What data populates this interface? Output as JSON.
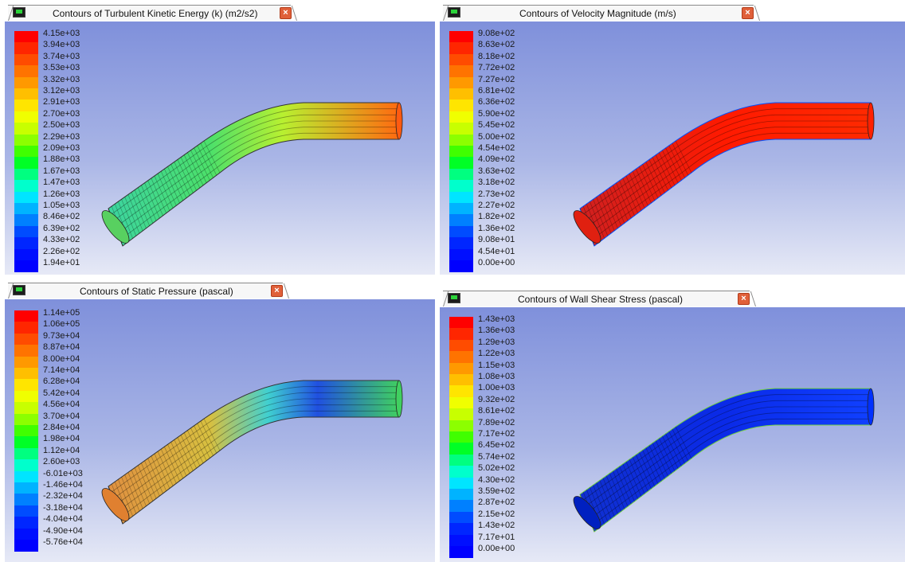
{
  "panels": [
    {
      "title": "Contours of Turbulent Kinetic Energy (k) (m2/s2)",
      "legend": [
        "4.15e+03",
        "3.94e+03",
        "3.74e+03",
        "3.53e+03",
        "3.32e+03",
        "3.12e+03",
        "2.91e+03",
        "2.70e+03",
        "2.50e+03",
        "2.29e+03",
        "2.09e+03",
        "1.88e+03",
        "1.67e+03",
        "1.47e+03",
        "1.26e+03",
        "1.05e+03",
        "8.46e+02",
        "6.39e+02",
        "4.33e+02",
        "2.26e+02",
        "1.94e+01"
      ]
    },
    {
      "title": "Contours of Velocity Magnitude (m/s)",
      "legend": [
        "9.08e+02",
        "8.63e+02",
        "8.18e+02",
        "7.72e+02",
        "7.27e+02",
        "6.81e+02",
        "6.36e+02",
        "5.90e+02",
        "5.45e+02",
        "5.00e+02",
        "4.54e+02",
        "4.09e+02",
        "3.63e+02",
        "3.18e+02",
        "2.73e+02",
        "2.27e+02",
        "1.82e+02",
        "1.36e+02",
        "9.08e+01",
        "4.54e+01",
        "0.00e+00"
      ]
    },
    {
      "title": "Contours of Static Pressure (pascal)",
      "legend": [
        "1.14e+05",
        "1.06e+05",
        "9.73e+04",
        "8.87e+04",
        "8.00e+04",
        "7.14e+04",
        "6.28e+04",
        "5.42e+04",
        "4.56e+04",
        "3.70e+04",
        "2.84e+04",
        "1.98e+04",
        "1.12e+04",
        "2.60e+03",
        "-6.01e+03",
        "-1.46e+04",
        "-2.32e+04",
        "-3.18e+04",
        "-4.04e+04",
        "-4.90e+04",
        "-5.76e+04"
      ]
    },
    {
      "title": "Contours of Wall Shear Stress (pascal)",
      "legend": [
        "1.43e+03",
        "1.36e+03",
        "1.29e+03",
        "1.22e+03",
        "1.15e+03",
        "1.08e+03",
        "1.00e+03",
        "9.32e+02",
        "8.61e+02",
        "7.89e+02",
        "7.17e+02",
        "6.45e+02",
        "5.74e+02",
        "5.02e+02",
        "4.30e+02",
        "3.59e+02",
        "2.87e+02",
        "2.15e+02",
        "1.43e+02",
        "7.17e+01",
        "0.00e+00"
      ]
    }
  ],
  "colorscale": [
    "#ff0000",
    "#ff2600",
    "#ff4c00",
    "#ff7300",
    "#ff9900",
    "#ffbf00",
    "#ffe500",
    "#f0ff00",
    "#c8ff00",
    "#8cff00",
    "#40ff00",
    "#00ff26",
    "#00ff80",
    "#00ffcc",
    "#00e5ff",
    "#00b3ff",
    "#0080ff",
    "#004cff",
    "#0026ff",
    "#000fff",
    "#0000ff"
  ]
}
